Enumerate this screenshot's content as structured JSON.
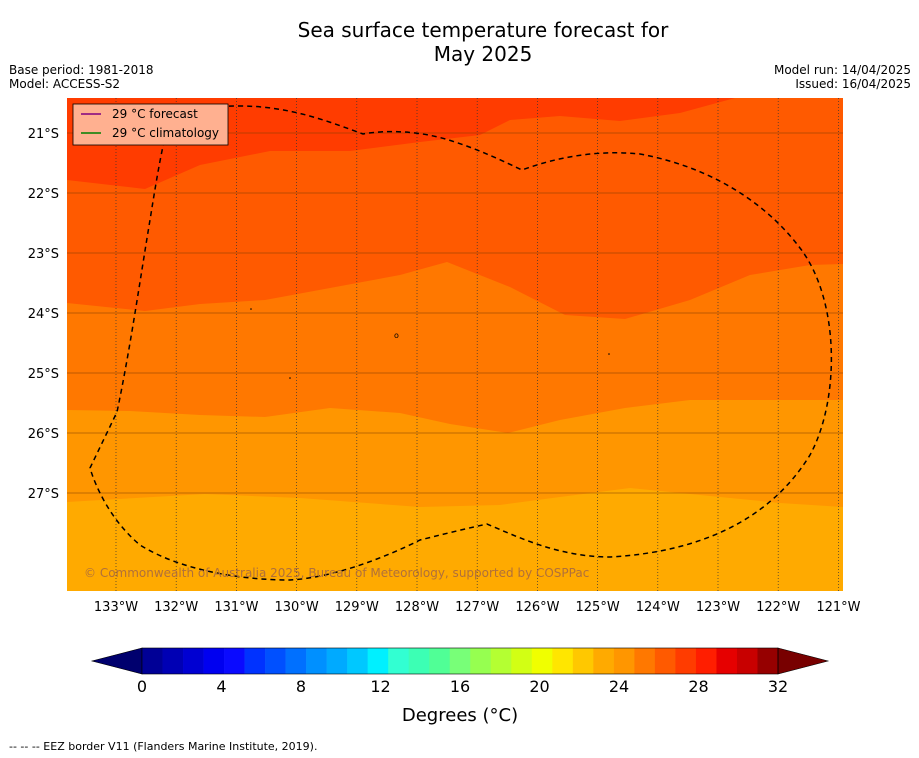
{
  "title_line1": "Sea surface temperature forecast for",
  "title_line2": "May 2025",
  "meta_left": {
    "base_period": "Base period: 1981-2018",
    "model": "Model: ACCESS-S2"
  },
  "meta_right": {
    "model_run": "Model run: 14/04/2025",
    "issued": "Issued: 16/04/2025"
  },
  "legend": {
    "forecast": "29 °C  forecast",
    "climatology": "29 °C  climatology",
    "forecast_color": "#800080",
    "climatology_color": "#008000"
  },
  "copyright": "© Commonwealth of Australia 2025, Bureau of Meteorology, supported by COSPPac",
  "lat_labels": [
    "21°S",
    "22°S",
    "23°S",
    "24°S",
    "25°S",
    "26°S",
    "27°S"
  ],
  "lon_labels": [
    "133°W",
    "132°W",
    "131°W",
    "130°W",
    "129°W",
    "128°W",
    "127°W",
    "126°W",
    "125°W",
    "124°W",
    "123°W",
    "122°W",
    "121°W"
  ],
  "colorbar": {
    "ticks": [
      "0",
      "4",
      "8",
      "12",
      "16",
      "20",
      "24",
      "28",
      "32"
    ],
    "label": "Degrees (°C)",
    "colors": [
      "#000096",
      "#0000b4",
      "#0000d2",
      "#0000f0",
      "#0a0aff",
      "#0032ff",
      "#0050ff",
      "#0070ff",
      "#0090ff",
      "#00aaff",
      "#00c8ff",
      "#00f0ff",
      "#32ffd2",
      "#3cffb4",
      "#50ff96",
      "#78ff78",
      "#96ff50",
      "#b4ff32",
      "#d2ff14",
      "#f0ff00",
      "#ffe600",
      "#ffc800",
      "#ffaa00",
      "#ff9600",
      "#ff7800",
      "#ff5a00",
      "#ff3c00",
      "#ff1e00",
      "#e60000",
      "#c80000",
      "#960000"
    ],
    "under_color": "#00006e",
    "over_color": "#780000"
  },
  "map_colors": {
    "c22": "#ffaa00",
    "c23": "#ff9600",
    "c24": "#ff7800",
    "c25": "#ff5a00",
    "c26": "#ff3c00"
  },
  "footer": "--  --  -- EEZ border V11 (Flanders Marine Institute, 2019)."
}
